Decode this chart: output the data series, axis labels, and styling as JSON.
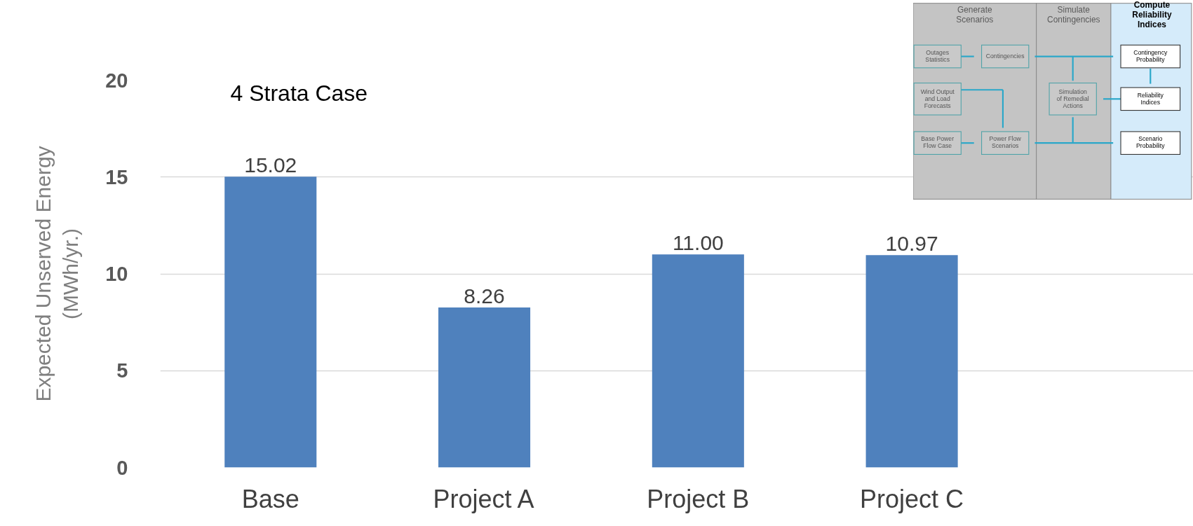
{
  "chart_data": {
    "type": "bar",
    "ylabel": "Expected Unserved Energy (MWh/yr.)",
    "categories": [
      "Base",
      "Project A",
      "Project B",
      "Project C"
    ],
    "values": [
      15.02,
      8.26,
      11.0,
      10.97
    ],
    "value_labels": [
      "15.02",
      "8.26",
      "11.00",
      "10.97"
    ],
    "color": "#4f81bd",
    "ylim": [
      0,
      20
    ],
    "yticks": [
      0,
      5,
      10,
      15,
      20
    ],
    "grid": "y",
    "annotations": [
      "4 Strata Case",
      "Generate Scenarios",
      "Simulate Contingencies",
      "Compute Reliability Indices",
      "Outages Statistics",
      "Contingencies",
      "Wind Output and Load Forecasts",
      "Base Power Flow Case",
      "Power Flow Scenarios",
      "Simulation of Remedial Actions",
      "Contingency Probability",
      "Reliability Indices",
      "Scenario Probability"
    ]
  }
}
